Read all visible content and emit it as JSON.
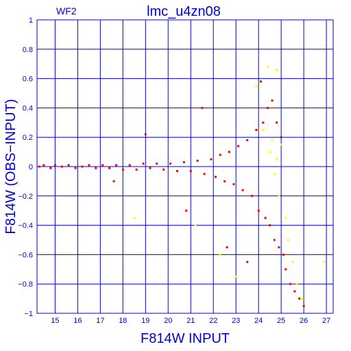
{
  "chart_data": {
    "type": "scatter",
    "title": "lmc_u4zn08",
    "subtitle": "WF2",
    "xlabel": "F814W  INPUT",
    "ylabel": "F814W  (OBS−INPUT)",
    "xlim": [
      14.2,
      27.3
    ],
    "ylim": [
      -1,
      1
    ],
    "x_ticks": [
      "15",
      "16",
      "17",
      "18",
      "19",
      "20",
      "21",
      "22",
      "23",
      "24",
      "25",
      "26",
      "27"
    ],
    "y_ticks": [
      "1",
      "0.8",
      "0.6",
      "0.4",
      "0.2",
      "0",
      "−0.2",
      "−0.4",
      "−0.6",
      "−0.8",
      "−1"
    ],
    "grid": true,
    "series": [
      {
        "color": "#ff0000",
        "points": [
          [
            14.3,
            0.0
          ],
          [
            14.5,
            0.01
          ],
          [
            14.8,
            -0.01
          ],
          [
            15.0,
            0.01
          ],
          [
            15.3,
            0.0
          ],
          [
            15.6,
            0.01
          ],
          [
            15.9,
            -0.01
          ],
          [
            16.2,
            0.0
          ],
          [
            16.5,
            0.01
          ],
          [
            16.8,
            -0.01
          ],
          [
            17.1,
            0.01
          ],
          [
            17.4,
            -0.01
          ],
          [
            17.7,
            0.01
          ],
          [
            18.0,
            -0.02
          ],
          [
            18.3,
            0.01
          ],
          [
            18.6,
            -0.02
          ],
          [
            18.9,
            0.02
          ],
          [
            19.2,
            -0.01
          ],
          [
            19.5,
            0.02
          ],
          [
            19.8,
            -0.02
          ],
          [
            20.1,
            0.02
          ],
          [
            20.4,
            -0.03
          ],
          [
            20.7,
            0.03
          ],
          [
            21.0,
            -0.03
          ],
          [
            21.3,
            0.04
          ],
          [
            21.6,
            -0.05
          ],
          [
            21.9,
            0.05
          ],
          [
            22.1,
            -0.07
          ],
          [
            22.3,
            0.08
          ],
          [
            22.5,
            -0.1
          ],
          [
            22.7,
            0.1
          ],
          [
            22.9,
            -0.12
          ],
          [
            23.1,
            0.14
          ],
          [
            23.3,
            -0.16
          ],
          [
            23.5,
            0.18
          ],
          [
            23.7,
            -0.2
          ],
          [
            23.9,
            0.25
          ],
          [
            24.0,
            -0.3
          ],
          [
            24.2,
            0.3
          ],
          [
            24.3,
            -0.35
          ],
          [
            24.4,
            0.4
          ],
          [
            24.5,
            -0.4
          ],
          [
            24.6,
            0.45
          ],
          [
            24.7,
            -0.5
          ],
          [
            24.8,
            0.3
          ],
          [
            24.9,
            -0.55
          ],
          [
            25.0,
            0.2
          ],
          [
            25.1,
            -0.6
          ],
          [
            25.2,
            -0.7
          ],
          [
            25.4,
            -0.8
          ],
          [
            25.6,
            -0.85
          ],
          [
            25.8,
            -0.9
          ],
          [
            26.0,
            -0.95
          ],
          [
            21.5,
            0.4
          ],
          [
            22.6,
            -0.55
          ],
          [
            23.5,
            -0.65
          ],
          [
            24.1,
            0.58
          ],
          [
            19.0,
            0.22
          ],
          [
            20.8,
            -0.3
          ],
          [
            17.6,
            -0.1
          ]
        ]
      },
      {
        "color": "#ffff00",
        "points": [
          [
            24.2,
            0.25
          ],
          [
            24.5,
            0.1
          ],
          [
            24.7,
            -0.05
          ],
          [
            24.9,
            -0.2
          ],
          [
            25.0,
            0.15
          ],
          [
            25.2,
            -0.35
          ],
          [
            25.3,
            -0.5
          ],
          [
            25.5,
            -0.65
          ],
          [
            25.7,
            -0.8
          ],
          [
            25.9,
            -0.9
          ],
          [
            24.8,
            0.05
          ],
          [
            24.6,
            0.18
          ],
          [
            23.9,
            0.55
          ],
          [
            24.8,
            0.66
          ],
          [
            22.3,
            -0.6
          ],
          [
            23.0,
            -0.75
          ],
          [
            26.9,
            -0.65
          ],
          [
            18.5,
            -0.35
          ],
          [
            21.2,
            -0.4
          ],
          [
            24.4,
            0.68
          ]
        ]
      }
    ]
  }
}
